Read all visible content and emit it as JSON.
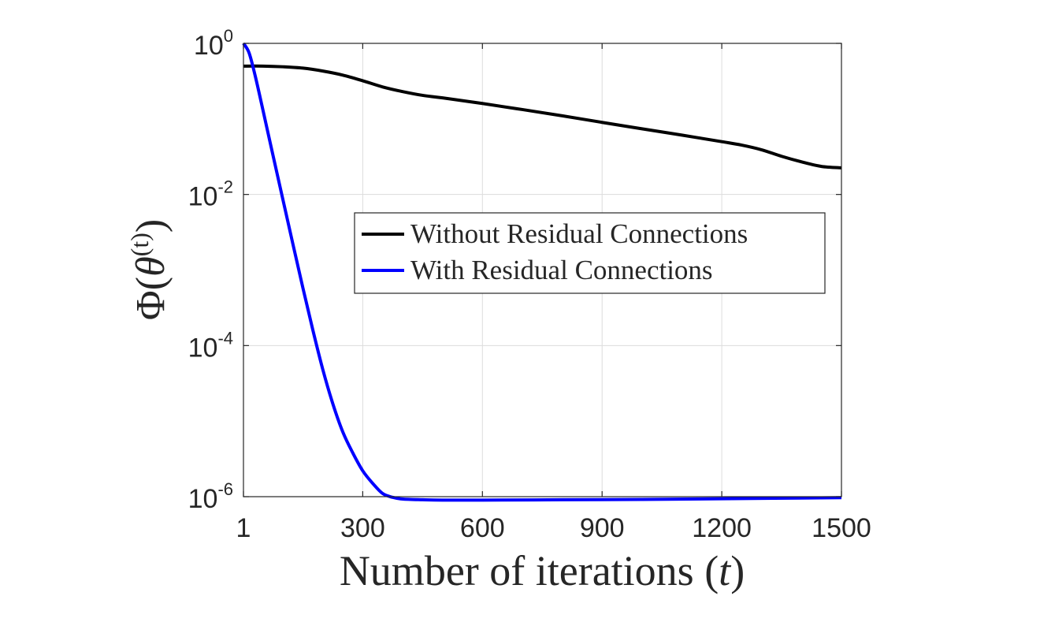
{
  "chart_data": {
    "type": "line",
    "xlabel": {
      "text": "Number of iterations (",
      "var": "t",
      "close": ")"
    },
    "ylabel": {
      "phi": "Φ",
      "open": "(",
      "theta": "θ",
      "sup": "(t)",
      "close": ")"
    },
    "x_ticks": [
      "1",
      "300",
      "600",
      "900",
      "1200",
      "1500"
    ],
    "x_tick_values": [
      1,
      300,
      600,
      900,
      1200,
      1500
    ],
    "y_tick_values": [
      1e-06,
      0.0001,
      0.01,
      1
    ],
    "y_ticks": [
      {
        "base": "10",
        "exp": "-6"
      },
      {
        "base": "10",
        "exp": "-4"
      },
      {
        "base": "10",
        "exp": "-2"
      },
      {
        "base": "10",
        "exp": "0"
      }
    ],
    "xlim": [
      1,
      1500
    ],
    "ylim": [
      1e-06,
      1
    ],
    "yscale": "log",
    "grid": true,
    "legend_position": "center-right",
    "series": [
      {
        "name": "Without Residual Connections",
        "color": "#000000",
        "x": [
          1,
          50,
          100,
          150,
          200,
          250,
          300,
          350,
          400,
          450,
          500,
          600,
          700,
          800,
          900,
          1000,
          1100,
          1200,
          1250,
          1300,
          1350,
          1400,
          1450,
          1500
        ],
        "y": [
          0.5,
          0.5,
          0.49,
          0.47,
          0.43,
          0.38,
          0.32,
          0.265,
          0.23,
          0.205,
          0.19,
          0.16,
          0.133,
          0.11,
          0.09,
          0.074,
          0.061,
          0.05,
          0.045,
          0.039,
          0.032,
          0.027,
          0.0235,
          0.0225
        ]
      },
      {
        "name": "With Residual Connections",
        "color": "#0000ff",
        "x": [
          1,
          15,
          30,
          50,
          75,
          100,
          125,
          150,
          175,
          200,
          225,
          250,
          275,
          300,
          325,
          350,
          375,
          400,
          450,
          500,
          600,
          800,
          1000,
          1200,
          1500
        ],
        "y": [
          1.0,
          0.75,
          0.38,
          0.13,
          0.033,
          0.0085,
          0.0022,
          0.00058,
          0.00016,
          4.8e-05,
          1.7e-05,
          7.2e-06,
          3.8e-06,
          2.2e-06,
          1.5e-06,
          1.1e-06,
          9.8e-07,
          9.3e-07,
          9.1e-07,
          9e-07,
          9e-07,
          9.1e-07,
          9.2e-07,
          9.4e-07,
          9.7e-07
        ]
      }
    ]
  }
}
